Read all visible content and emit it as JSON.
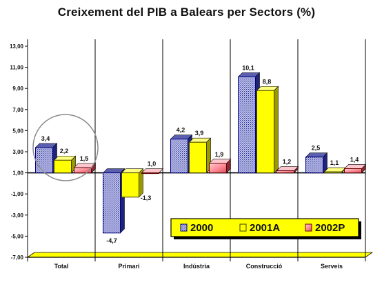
{
  "chart_data": {
    "type": "bar",
    "title": "Creixement del PIB a Balears per Sectors (%)",
    "xlabel": "",
    "ylabel": "",
    "categories": [
      "Total",
      "Primari",
      "Indústria",
      "Construcció",
      "Serveis"
    ],
    "series": [
      {
        "name": "2000",
        "values": [
          3.4,
          -4.7,
          4.2,
          10.1,
          2.5
        ],
        "labels": [
          "3,4",
          "-4,7",
          "4,2",
          "10,1",
          "2,5"
        ]
      },
      {
        "name": "2001A",
        "values": [
          2.2,
          -1.3,
          3.9,
          8.8,
          1.1
        ],
        "labels": [
          "2,2",
          "-1,3",
          "3,9",
          "8,8",
          "1,1"
        ]
      },
      {
        "name": "2002P",
        "values": [
          1.5,
          1.0,
          1.9,
          1.2,
          1.4
        ],
        "labels": [
          "1,5",
          "1,0",
          "1,9",
          "1,2",
          "1,4"
        ]
      }
    ],
    "yticks": [
      "13,00",
      "11,00",
      "9,00",
      "7,00",
      "5,00",
      "3,00",
      "1,00",
      "-1,00",
      "-3,00",
      "-5,00",
      "-7,00"
    ],
    "ylim": [
      -7,
      13
    ],
    "grid": false,
    "legend_position": "bottom-right, inside plot",
    "colors": {
      "2000": "#8a8fd6",
      "2000_dark": "#000080",
      "2001A": "#ffff00",
      "2001A_dark": "#808000",
      "2002P": "#ff9fa8",
      "2002P_dark": "#800000",
      "floor": "#ffff00"
    }
  }
}
